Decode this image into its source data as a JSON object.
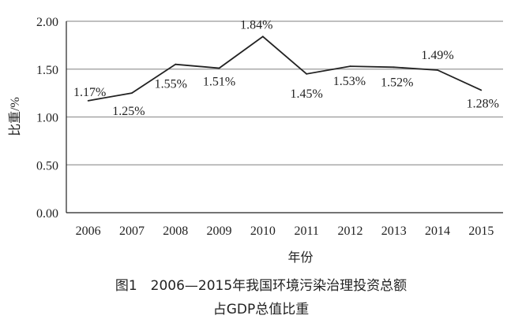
{
  "chart_data": {
    "type": "line",
    "categories": [
      "2006",
      "2007",
      "2008",
      "2009",
      "2010",
      "2011",
      "2012",
      "2013",
      "2014",
      "2015"
    ],
    "values": [
      1.17,
      1.25,
      1.55,
      1.51,
      1.84,
      1.45,
      1.53,
      1.52,
      1.49,
      1.28
    ],
    "data_labels": [
      "1.17%",
      "1.25%",
      "1.55%",
      "1.51%",
      "1.84%",
      "1.45%",
      "1.53%",
      "1.52%",
      "1.49%",
      "1.28%"
    ],
    "xlabel": "年份",
    "ylabel": "比重/%",
    "ylim": [
      0,
      2.0
    ],
    "yticks": [
      "0.00",
      "0.50",
      "1.00",
      "1.50",
      "2.00"
    ],
    "grid": "horizontal",
    "line_color": "#222222",
    "grid_color": "#999999"
  },
  "caption": {
    "line1": "图1　2006—2015年我国环境污染治理投资总额",
    "line2": "占GDP总值比重"
  }
}
